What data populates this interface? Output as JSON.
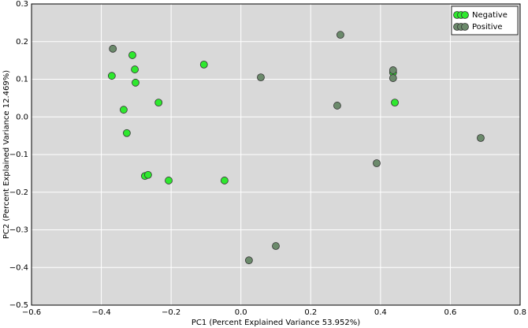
{
  "chart_data": {
    "type": "scatter",
    "x_label": "PC1 (Percent Explained Variance 53.952%)",
    "y_label": "PC2 (Percent Explained Variance 12.469%)",
    "xlim": [
      -0.6,
      0.8
    ],
    "ylim": [
      -0.5,
      0.3
    ],
    "xticks": [
      {
        "value": -0.6,
        "label": "−0.6"
      },
      {
        "value": -0.4,
        "label": "−0.4"
      },
      {
        "value": -0.2,
        "label": "−0.2"
      },
      {
        "value": 0,
        "label": "0.0"
      },
      0.2,
      0.4,
      0.6,
      0.8
    ],
    "yticks": [
      0.3,
      0.2,
      0.1,
      {
        "value": 0,
        "label": "0.0"
      },
      {
        "value": -0.1,
        "label": "−0.1"
      },
      {
        "value": -0.2,
        "label": "−0.2"
      },
      {
        "value": -0.3,
        "label": "−0.3"
      },
      {
        "value": -0.4,
        "label": "−0.4"
      },
      {
        "value": -0.5,
        "label": "−0.5"
      }
    ],
    "grid": true,
    "legend": "upper right",
    "series": [
      {
        "name": "Negative",
        "color": "#2ee82e",
        "x": [
          -0.311,
          -0.37,
          -0.304,
          -0.302,
          -0.336,
          -0.327,
          -0.236,
          -0.106,
          -0.275,
          -0.266,
          -0.207,
          -0.047,
          0.436,
          0.441
        ],
        "values": [
          0.164,
          0.109,
          0.126,
          0.091,
          0.019,
          -0.043,
          0.038,
          0.139,
          -0.157,
          -0.154,
          -0.169,
          -0.169,
          0.118,
          0.038
        ]
      },
      {
        "name": "Positive",
        "color": "#6b8a6b",
        "x": [
          -0.367,
          0.057,
          0.285,
          0.436,
          0.436,
          0.276,
          0.389,
          0.687,
          0.1,
          0.023
        ],
        "values": [
          0.181,
          0.105,
          0.218,
          0.124,
          0.103,
          0.03,
          -0.123,
          -0.056,
          -0.343,
          -0.381
        ]
      }
    ]
  }
}
